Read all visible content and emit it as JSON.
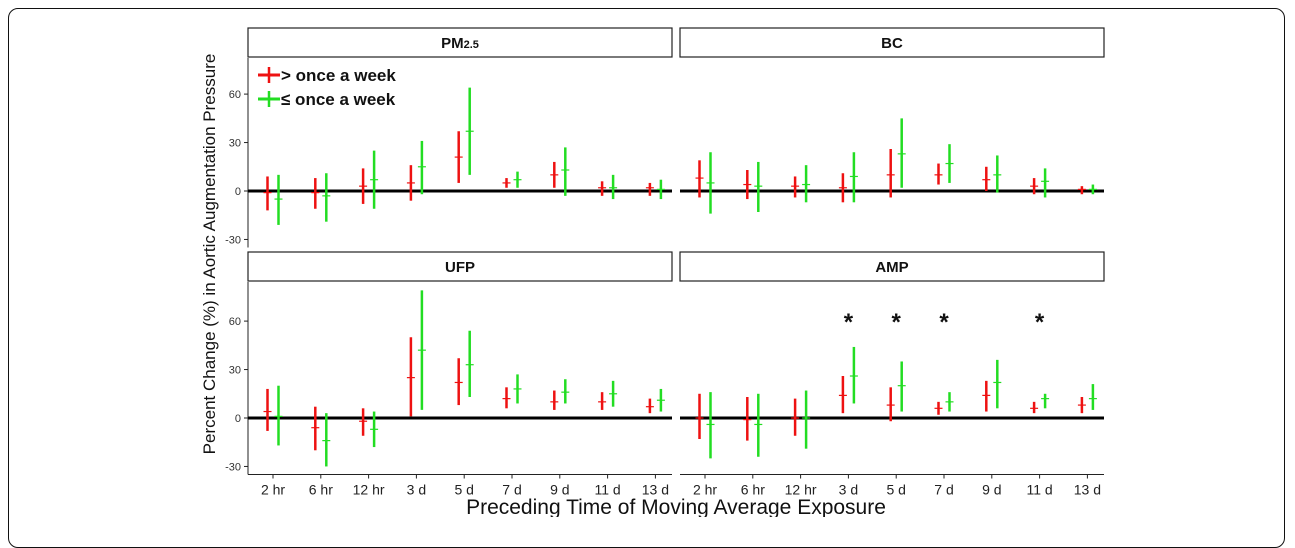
{
  "chart_data": {
    "type": "error-bar",
    "ylabel": "Percent Change (%) in Aortic Augmentation Pressure",
    "xlabel": "Preceding Time of Moving Average Exposure",
    "categories": [
      "2 hr",
      "6 hr",
      "12 hr",
      "3 d",
      "5 d",
      "7 d",
      "9 d",
      "11 d",
      "13 d"
    ],
    "yticks": [
      -30,
      0,
      30,
      60
    ],
    "ylim": [
      -35,
      85
    ],
    "legend": {
      "placement": "top-left",
      "entries": [
        {
          "label": "> once a week",
          "color": "#ee1111"
        },
        {
          "label": "≤ once a week",
          "color": "#22dd22"
        }
      ]
    },
    "significance_mark": "*",
    "panels": [
      {
        "name": "PM",
        "name_sub": "2.5",
        "series": [
          {
            "name": "> once a week",
            "estimate": [
              -1,
              -1,
              3,
              5,
              21,
              5,
              10,
              2,
              2
            ],
            "lower": [
              -12,
              -11,
              -8,
              -6,
              5,
              2,
              2,
              -3,
              -3
            ],
            "upper": [
              9,
              8,
              14,
              16,
              37,
              8,
              18,
              6,
              5
            ]
          },
          {
            "name": "≤ once a week",
            "estimate": [
              -5,
              -3,
              7,
              15,
              37,
              7,
              13,
              2,
              1
            ],
            "lower": [
              -21,
              -19,
              -11,
              -2,
              10,
              2,
              -3,
              -5,
              -5
            ],
            "upper": [
              10,
              11,
              25,
              31,
              64,
              12,
              27,
              10,
              7
            ]
          }
        ],
        "significant": []
      },
      {
        "name": "BC",
        "series": [
          {
            "name": "> once a week",
            "estimate": [
              8,
              4,
              3,
              2,
              10,
              10,
              7,
              3,
              1
            ],
            "lower": [
              -4,
              -5,
              -4,
              -7,
              -4,
              4,
              0,
              -2,
              -2
            ],
            "upper": [
              19,
              13,
              9,
              11,
              26,
              17,
              15,
              8,
              3
            ]
          },
          {
            "name": "≤ once a week",
            "estimate": [
              5,
              3,
              4,
              9,
              23,
              17,
              10,
              6,
              1
            ],
            "lower": [
              -14,
              -13,
              -7,
              -7,
              2,
              5,
              -1,
              -4,
              -2
            ],
            "upper": [
              24,
              18,
              16,
              24,
              45,
              29,
              22,
              14,
              4
            ]
          }
        ],
        "significant": []
      },
      {
        "name": "UFP",
        "series": [
          {
            "name": "> once a week",
            "estimate": [
              4,
              -6,
              -2,
              25,
              22,
              12,
              10,
              10,
              7
            ],
            "lower": [
              -8,
              -20,
              -11,
              1,
              8,
              6,
              5,
              5,
              3
            ],
            "upper": [
              18,
              7,
              6,
              50,
              37,
              19,
              17,
              16,
              12
            ]
          },
          {
            "name": "≤ once a week",
            "estimate": [
              1,
              -14,
              -7,
              42,
              33,
              18,
              16,
              15,
              11
            ],
            "lower": [
              -17,
              -30,
              -18,
              5,
              13,
              9,
              9,
              7,
              4
            ],
            "upper": [
              20,
              3,
              4,
              79,
              54,
              27,
              24,
              23,
              18
            ]
          }
        ],
        "significant": []
      },
      {
        "name": "AMP",
        "series": [
          {
            "name": "> once a week",
            "estimate": [
              0,
              -1,
              0,
              14,
              8,
              6,
              14,
              6,
              8
            ],
            "lower": [
              -13,
              -14,
              -11,
              3,
              -2,
              2,
              4,
              3,
              3
            ],
            "upper": [
              15,
              13,
              12,
              26,
              19,
              10,
              23,
              10,
              13
            ]
          },
          {
            "name": "≤ once a week",
            "estimate": [
              -4,
              -4,
              0,
              26,
              20,
              10,
              22,
              12,
              12
            ],
            "lower": [
              -25,
              -24,
              -19,
              9,
              4,
              4,
              6,
              6,
              5
            ],
            "upper": [
              16,
              15,
              17,
              44,
              35,
              16,
              36,
              15,
              21
            ]
          }
        ],
        "significant": [
          3,
          4,
          5,
          7
        ]
      }
    ]
  }
}
